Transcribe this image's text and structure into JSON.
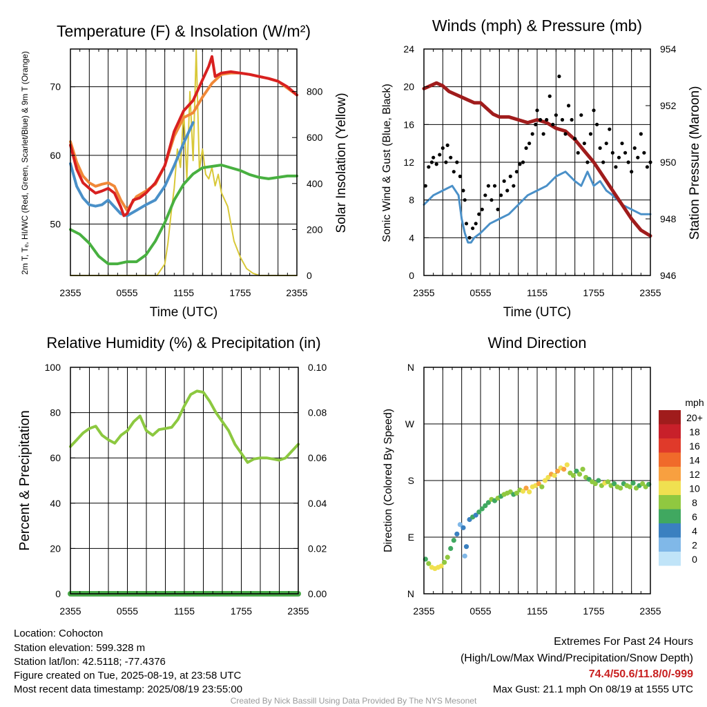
{
  "panels": {
    "temp": {
      "title": "Temperature (F) & Insolation (W/m²)",
      "ylabel_left": "2m T, Tₑ, HI/WC (Red, Green, Scarlet/Blue) & 9m T (Orange)",
      "ylabel_right": "Solar Insolation (Yellow)",
      "xlabel": "Time (UTC)"
    },
    "wind": {
      "title": "Winds (mph) & Pressure (mb)",
      "ylabel_left": "Sonic Wind & Gust (Blue, Black)",
      "ylabel_right": "Station Pressure (Maroon)",
      "xlabel": "Time (UTC)"
    },
    "rh": {
      "title": "Relative Humidity (%) & Precipitation (in)",
      "ylabel_left": "Percent & Precipitation"
    },
    "dir": {
      "title": "Wind Direction",
      "ylabel_left": "Direction (Colored By Speed)",
      "legend_title": "mph",
      "legend_labels": [
        "20+",
        "18",
        "16",
        "14",
        "12",
        "10",
        "8",
        "6",
        "4",
        "2",
        "0"
      ],
      "legend_colors": [
        "#a01c1c",
        "#c8202a",
        "#e03a2a",
        "#f06a2a",
        "#f8a040",
        "#f0e050",
        "#90c840",
        "#40a860",
        "#3a80c0",
        "#80b8e8",
        "#c0e4f8"
      ]
    }
  },
  "info": {
    "location": "Location: Cohocton",
    "elevation": "Station elevation: 599.328 m",
    "latlon": "Station lat/lon: 42.5118; -77.4376",
    "created": "Figure created on Tue, 2025-08-19, at 23:58 UTC",
    "recent": "Most recent data timestamp: 2025/08/19 23:55:00"
  },
  "extremes": {
    "title": "Extremes For Past 24 Hours",
    "subtitle": "(High/Low/Max Wind/Precipitation/Snow Depth)",
    "values": "74.4/50.6/11.8/0/-999",
    "gust": "Max Gust: 21.1 mph On 08/19 at 1555 UTC",
    "color": "#c82020"
  },
  "credit": "Created By Nick Bassill Using Data Provided By The NYS Mesonet",
  "chart_data": [
    {
      "type": "line",
      "id": "temp",
      "x_ticks": [
        "2355",
        "0555",
        "1155",
        "1755",
        "2355"
      ],
      "ylim_left": [
        42.5,
        75.5
      ],
      "yticks_left": [
        50,
        60,
        70
      ],
      "ylim_right": [
        0,
        985
      ],
      "yticks_right": [
        0,
        200,
        400,
        600,
        800
      ],
      "series": [
        {
          "color": "#d8c838",
          "axis": "right",
          "x": [
            0,
            20,
            40,
            55,
            60,
            62,
            64,
            66,
            68,
            70,
            72,
            74,
            76,
            78,
            80,
            82,
            84,
            86,
            88,
            90,
            92,
            94,
            96,
            100,
            104,
            108,
            112,
            116,
            120,
            126,
            132,
            138,
            144
          ],
          "y": [
            0,
            0,
            0,
            0,
            50,
            140,
            270,
            380,
            550,
            470,
            720,
            420,
            800,
            500,
            980,
            460,
            550,
            440,
            420,
            470,
            390,
            440,
            360,
            300,
            150,
            80,
            30,
            10,
            0,
            0,
            0,
            0,
            0
          ]
        },
        {
          "color": "#48b040",
          "axis": "left",
          "x": [
            0,
            6,
            12,
            18,
            24,
            30,
            36,
            42,
            48,
            54,
            60,
            66,
            72,
            78,
            84,
            90,
            96,
            102,
            108,
            114,
            120,
            126,
            132,
            138,
            144
          ],
          "y": [
            49.2,
            48.5,
            47.2,
            45.3,
            44.2,
            44.2,
            44.5,
            44.5,
            45.5,
            47.5,
            50.2,
            53.5,
            55.8,
            57.3,
            58.2,
            58.4,
            58.6,
            58.2,
            57.8,
            57.2,
            56.8,
            56.6,
            56.8,
            57.0,
            57.0
          ]
        },
        {
          "color": "#4a90c8",
          "axis": "left",
          "x": [
            0,
            4,
            8,
            12,
            16,
            20,
            24,
            28,
            32,
            36,
            42,
            48,
            54,
            60,
            66,
            72,
            78
          ],
          "y": [
            58.8,
            55.5,
            53.8,
            52.8,
            52.6,
            52.8,
            53.5,
            52.5,
            51.5,
            51.2,
            52.0,
            52.8,
            53.5,
            55.5,
            58.5,
            61.8,
            64.8
          ]
        },
        {
          "color": "#f08838",
          "axis": "left",
          "x": [
            0,
            4,
            8,
            12,
            16,
            20,
            24,
            28,
            32,
            36,
            42,
            48,
            54,
            60,
            66,
            72,
            78,
            84,
            90,
            96,
            102,
            108,
            114,
            120,
            126,
            132,
            138,
            144
          ],
          "y": [
            62.0,
            59.0,
            57.0,
            56.0,
            55.5,
            55.8,
            56.0,
            55.5,
            53.5,
            52.0,
            54.0,
            54.8,
            55.8,
            58.5,
            62.8,
            65.5,
            66.2,
            68.5,
            70.5,
            71.8,
            72.0,
            72.0,
            71.8,
            71.5,
            71.2,
            70.8,
            69.8,
            68.8
          ]
        },
        {
          "color": "#d82020",
          "axis": "left",
          "x": [
            0,
            4,
            8,
            12,
            16,
            20,
            24,
            28,
            32,
            34,
            36,
            40,
            44,
            48,
            54,
            60,
            66,
            72,
            78,
            84,
            88,
            90,
            92,
            96,
            102,
            108,
            114,
            120,
            126,
            132,
            138,
            144
          ],
          "y": [
            61.5,
            58.0,
            56.0,
            55.2,
            54.5,
            54.8,
            55.2,
            54.5,
            52.5,
            51.2,
            51.5,
            53.5,
            53.8,
            54.5,
            56.0,
            58.5,
            63.5,
            66.5,
            68.0,
            71.0,
            73.0,
            74.4,
            71.5,
            72.0,
            72.2,
            72.0,
            71.8,
            71.5,
            71.2,
            70.8,
            70.0,
            68.8
          ]
        }
      ]
    },
    {
      "type": "line",
      "id": "wind",
      "x_ticks": [
        "2355",
        "0555",
        "1155",
        "1755",
        "2355"
      ],
      "ylim_left": [
        0,
        24
      ],
      "yticks_left": [
        0,
        4,
        8,
        12,
        16,
        20,
        24
      ],
      "ylim_right": [
        946,
        954
      ],
      "yticks_right": [
        946,
        948,
        950,
        952,
        954
      ],
      "series": [
        {
          "name": "wind",
          "color": "#4a90c8",
          "axis": "left",
          "x": [
            0,
            6,
            12,
            18,
            22,
            24,
            26,
            28,
            30,
            32,
            36,
            42,
            48,
            54,
            60,
            66,
            72,
            78,
            84,
            90,
            96,
            100,
            104,
            108,
            112,
            116,
            120,
            126,
            132,
            138,
            144
          ],
          "y": [
            7.5,
            8.5,
            9.0,
            9.5,
            8.5,
            6.0,
            4.5,
            3.5,
            3.5,
            4.0,
            4.5,
            5.5,
            6.0,
            6.5,
            7.5,
            8.5,
            9.0,
            9.5,
            10.5,
            11.0,
            10.0,
            9.5,
            11.0,
            9.5,
            10.0,
            9.0,
            8.5,
            7.5,
            7.0,
            6.5,
            6.5
          ]
        },
        {
          "name": "pressure",
          "color": "#a01c1c",
          "axis": "right",
          "x": [
            0,
            4,
            8,
            12,
            16,
            20,
            24,
            28,
            32,
            36,
            40,
            44,
            48,
            54,
            60,
            66,
            72,
            78,
            84,
            90,
            96,
            102,
            108,
            114,
            120,
            126,
            132,
            138,
            144
          ],
          "y": [
            952.6,
            952.7,
            952.8,
            952.7,
            952.5,
            952.4,
            952.3,
            952.2,
            952.1,
            952.1,
            951.9,
            951.7,
            951.6,
            951.6,
            951.5,
            951.4,
            951.5,
            951.4,
            951.2,
            951.1,
            950.8,
            950.4,
            950.0,
            949.5,
            949.0,
            948.5,
            948.0,
            947.6,
            947.4
          ]
        }
      ],
      "gust_points": {
        "x": [
          1,
          3,
          5,
          6,
          8,
          10,
          12,
          14,
          15,
          17,
          19,
          21,
          23,
          25,
          26,
          27,
          29,
          31,
          33,
          35,
          37,
          39,
          41,
          43,
          45,
          47,
          49,
          51,
          53,
          55,
          57,
          59,
          61,
          63,
          65,
          67,
          69,
          71,
          72,
          74,
          76,
          78,
          80,
          82,
          84,
          86,
          88,
          90,
          92,
          94,
          96,
          98,
          100,
          102,
          104,
          106,
          108,
          110,
          112,
          114,
          116,
          118,
          120,
          122,
          124,
          126,
          128,
          130,
          132,
          134,
          136,
          138,
          140,
          142,
          144
        ],
        "y": [
          9.5,
          11.5,
          12.0,
          12.5,
          11.8,
          12.8,
          13.5,
          12.0,
          13.8,
          12.5,
          11.0,
          12.0,
          10.5,
          9.0,
          8.0,
          5.5,
          4.0,
          5.0,
          5.5,
          6.5,
          7.0,
          8.5,
          9.5,
          8.0,
          9.5,
          7.0,
          8.5,
          10.0,
          9.0,
          10.5,
          9.5,
          11.0,
          11.8,
          12.0,
          13.5,
          14.0,
          15.0,
          16.0,
          17.5,
          16.5,
          15.0,
          16.5,
          19.0,
          16.0,
          17.0,
          21.1,
          16.5,
          15.0,
          18.0,
          16.5,
          14.5,
          13.0,
          17.0,
          14.0,
          12.0,
          15.0,
          17.5,
          16.0,
          13.5,
          12.0,
          14.0,
          15.5,
          13.0,
          11.5,
          12.5,
          14.0,
          13.0,
          12.0,
          11.0,
          13.5,
          12.5,
          15.0,
          13.0,
          11.5,
          12.0
        ]
      }
    },
    {
      "type": "line",
      "id": "rh",
      "x_ticks": [
        "2355",
        "0555",
        "1155",
        "1755",
        "2355"
      ],
      "ylim_left": [
        0,
        100
      ],
      "yticks_left": [
        0,
        20,
        40,
        60,
        80,
        100
      ],
      "ylim_right": [
        0,
        0.1
      ],
      "yticks_right": [
        "0.00",
        "0.02",
        "0.04",
        "0.06",
        "0.08",
        "0.10"
      ],
      "series": [
        {
          "name": "rh",
          "color": "#8cc840",
          "axis": "left",
          "x": [
            0,
            4,
            8,
            12,
            16,
            20,
            24,
            28,
            32,
            36,
            40,
            44,
            48,
            52,
            56,
            60,
            64,
            68,
            72,
            76,
            80,
            84,
            88,
            92,
            96,
            100,
            104,
            108,
            112,
            116,
            120,
            124,
            128,
            132,
            136,
            140,
            144
          ],
          "y": [
            65.0,
            68.0,
            71.0,
            73.0,
            74.0,
            70.0,
            68.0,
            66.5,
            70.0,
            72.0,
            76.0,
            78.5,
            72.0,
            70.0,
            72.5,
            73.0,
            73.5,
            77.0,
            83.0,
            88.0,
            89.5,
            89.0,
            85.0,
            80.0,
            76.0,
            72.0,
            66.0,
            62.0,
            58.0,
            59.5,
            60.0,
            60.0,
            59.5,
            59.0,
            60.0,
            63.0,
            66.0
          ]
        },
        {
          "name": "precip",
          "color": "#48a848",
          "axis": "left",
          "x": [
            0,
            144
          ],
          "y": [
            0,
            0
          ]
        }
      ]
    },
    {
      "type": "scatter",
      "id": "dir",
      "x_ticks": [
        "2355",
        "0555",
        "1155",
        "1755",
        "2355"
      ],
      "ylim": [
        0,
        360
      ],
      "yticks": [
        "N",
        "E",
        "S",
        "W",
        "N"
      ],
      "points": {
        "x": [
          1,
          3,
          5,
          7,
          9,
          11,
          13,
          15,
          17,
          19,
          21,
          23,
          25,
          26,
          27,
          29,
          31,
          33,
          35,
          37,
          39,
          41,
          43,
          45,
          47,
          49,
          51,
          53,
          55,
          57,
          59,
          61,
          63,
          65,
          67,
          69,
          71,
          73,
          75,
          77,
          79,
          81,
          83,
          85,
          87,
          89,
          91,
          93,
          95,
          97,
          99,
          101,
          103,
          105,
          107,
          109,
          111,
          113,
          115,
          117,
          119,
          121,
          123,
          125,
          127,
          129,
          131,
          133,
          135,
          137,
          139,
          141,
          143
        ],
        "y": [
          55,
          48,
          42,
          40,
          42,
          44,
          50,
          58,
          72,
          85,
          95,
          110,
          105,
          60,
          75,
          118,
          122,
          125,
          130,
          135,
          140,
          145,
          150,
          148,
          152,
          155,
          158,
          160,
          162,
          158,
          160,
          165,
          163,
          168,
          162,
          170,
          172,
          175,
          170,
          180,
          185,
          190,
          188,
          195,
          200,
          198,
          205,
          192,
          188,
          195,
          190,
          198,
          185,
          182,
          178,
          175,
          180,
          172,
          176,
          178,
          172,
          175,
          170,
          168,
          175,
          172,
          170,
          176,
          168,
          172,
          175,
          170,
          174
        ],
        "speed": [
          6,
          8,
          9,
          10,
          10,
          9,
          7,
          8,
          6,
          5,
          4,
          2,
          3,
          2,
          4,
          4,
          5,
          4,
          6,
          5,
          6,
          6,
          7,
          6,
          7,
          6,
          7,
          7,
          8,
          6,
          7,
          8,
          9,
          11,
          9,
          10,
          10,
          12,
          8,
          10,
          9,
          11,
          10,
          12,
          10,
          11,
          9,
          8,
          7,
          6,
          7,
          8,
          7,
          6,
          7,
          8,
          6,
          7,
          9,
          8,
          7,
          6,
          8,
          7,
          6,
          7,
          8,
          6,
          7,
          6,
          8,
          7,
          6
        ]
      }
    }
  ]
}
